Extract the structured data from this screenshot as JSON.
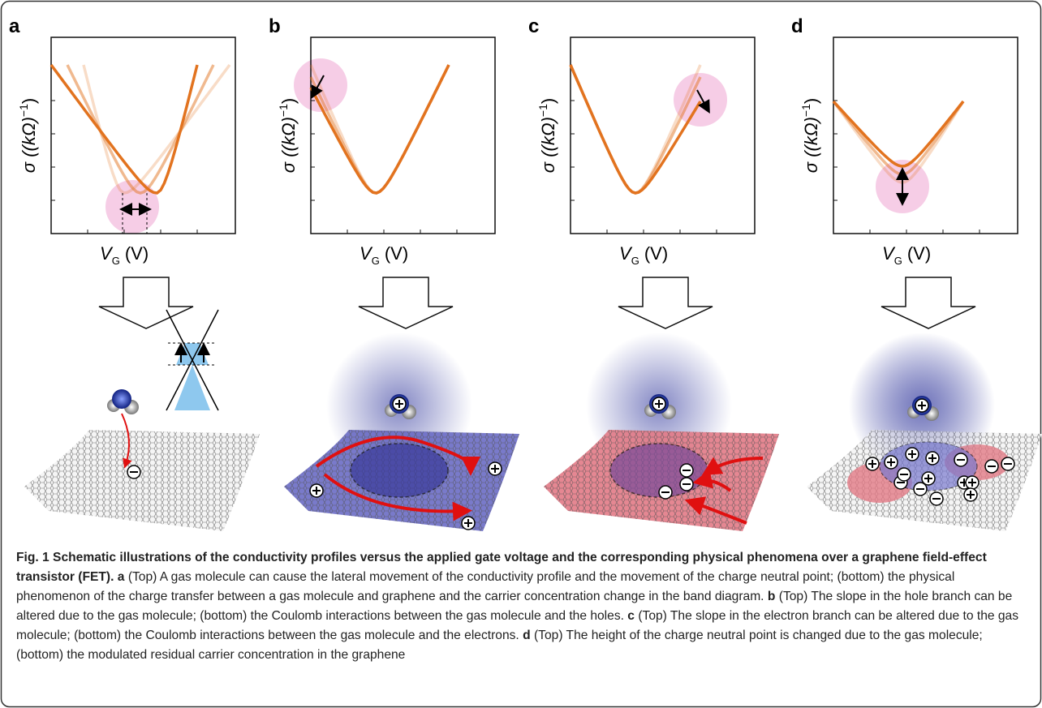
{
  "panels": [
    {
      "label": "a",
      "y_axis": {
        "text": "σ ((kΩ)",
        "superscript": "−1",
        "close": ")"
      },
      "x_axis": {
        "symbol": "V",
        "subscript": "G",
        "unit": "(V)"
      }
    },
    {
      "label": "b",
      "y_axis": {
        "text": "σ ((kΩ)",
        "superscript": "−1",
        "close": ")"
      },
      "x_axis": {
        "symbol": "V",
        "subscript": "G",
        "unit": "(V)"
      }
    },
    {
      "label": "c",
      "y_axis": {
        "text": "σ ((kΩ)",
        "superscript": "−1",
        "close": ")"
      },
      "x_axis": {
        "symbol": "V",
        "subscript": "G",
        "unit": "(V)"
      }
    },
    {
      "label": "d",
      "y_axis": {
        "text": "σ ((kΩ)",
        "superscript": "−1",
        "close": ")"
      },
      "x_axis": {
        "symbol": "V",
        "subscript": "G",
        "unit": "(V)"
      }
    }
  ],
  "caption": {
    "title": "Fig. 1 Schematic illustrations of the conductivity profiles versus the applied gate voltage and the corresponding physical phenomena over a graphene field-effect transistor (FET).",
    "items": [
      {
        "label": "a",
        "text": "(Top) A gas molecule can cause the lateral movement of the conductivity profile and the movement of the charge neutral point; (bottom) the physical phenomenon of the charge transfer between a gas molecule and graphene and the carrier concentration change in the band diagram."
      },
      {
        "label": "b",
        "text": "(Top) The slope in the hole branch can be altered due to the gas molecule; (bottom) the Coulomb interactions between the gas molecule and the holes."
      },
      {
        "label": "c",
        "text": "(Top) The slope in the electron branch can be altered due to the gas molecule; (bottom) the Coulomb interactions between the gas molecule and the electrons."
      },
      {
        "label": "d",
        "text": "(Top) The height of the charge neutral point is changed due to the gas molecule; (bottom) the modulated residual carrier concentration in the graphene"
      }
    ]
  }
}
